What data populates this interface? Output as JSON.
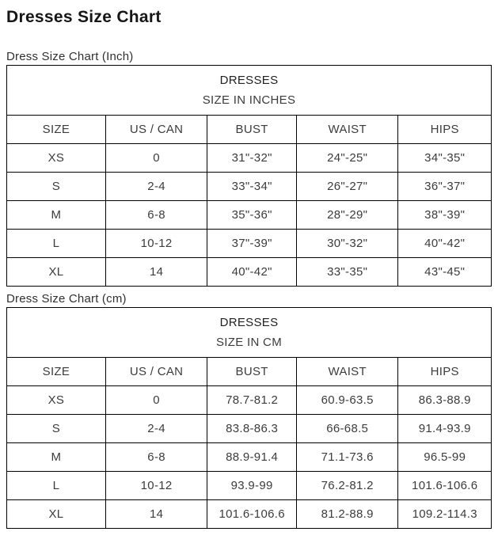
{
  "page": {
    "title": "Dresses Size Chart"
  },
  "tables": [
    {
      "section_label": "Dress Size Chart (Inch)",
      "header_line1": "DRESSES",
      "header_line2": "SIZE IN INCHES",
      "columns": [
        "SIZE",
        "US / CAN",
        "BUST",
        "WAIST",
        "HIPS"
      ],
      "rows": [
        [
          "XS",
          "0",
          "31\"-32\"",
          "24\"-25\"",
          "34\"-35\""
        ],
        [
          "S",
          "2-4",
          "33\"-34\"",
          "26\"-27\"",
          "36\"-37\""
        ],
        [
          "M",
          "6-8",
          "35\"-36\"",
          "28\"-29\"",
          "38\"-39\""
        ],
        [
          "L",
          "10-12",
          "37\"-39\"",
          "30\"-32\"",
          "40\"-42\""
        ],
        [
          "XL",
          "14",
          "40\"-42\"",
          "33\"-35\"",
          "43\"-45\""
        ]
      ]
    },
    {
      "section_label": "Dress Size Chart (cm)",
      "header_line1": "DRESSES",
      "header_line2": "SIZE IN CM",
      "columns": [
        "SIZE",
        "US / CAN",
        "BUST",
        "WAIST",
        "HIPS"
      ],
      "rows": [
        [
          "XS",
          "0",
          "78.7-81.2",
          "60.9-63.5",
          "86.3-88.9"
        ],
        [
          "S",
          "2-4",
          "83.8-86.3",
          "66-68.5",
          "91.4-93.9"
        ],
        [
          "M",
          "6-8",
          "88.9-91.4",
          "71.1-73.6",
          "96.5-99"
        ],
        [
          "L",
          "10-12",
          "93.9-99",
          "76.2-81.2",
          "101.6-106.6"
        ],
        [
          "XL",
          "14",
          "101.6-106.6",
          "81.2-88.9",
          "109.2-114.3"
        ]
      ]
    }
  ]
}
